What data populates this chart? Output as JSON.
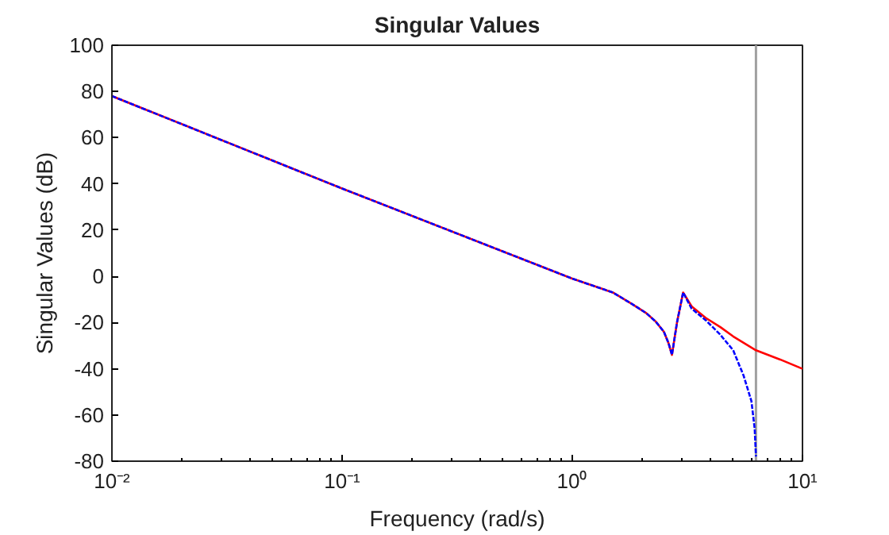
{
  "chart_data": {
    "type": "line",
    "title": "Singular Values",
    "xlabel": "Frequency (rad/s)",
    "ylabel": "Singular Values (dB)",
    "log": "x",
    "xlim": [
      0.01,
      10
    ],
    "ylim": [
      -80,
      100
    ],
    "xticks": [
      {
        "value": 0.01,
        "label": "10⁻²"
      },
      {
        "value": 0.1,
        "label": "10⁻¹"
      },
      {
        "value": 1,
        "label": "10⁰"
      },
      {
        "value": 10,
        "label": "10¹"
      }
    ],
    "yticks": [
      -80,
      -60,
      -40,
      -20,
      0,
      20,
      40,
      60,
      80,
      100
    ],
    "grid": false,
    "series": [
      {
        "color": "#ff0000",
        "line_style": "solid",
        "x": [
          0.01,
          0.1,
          1,
          1.5,
          1.82,
          2.1,
          2.3,
          2.5,
          2.62,
          2.71,
          2.85,
          3.03,
          3.3,
          3.8,
          4.4,
          5.0,
          6.28,
          8,
          10
        ],
        "values": [
          78,
          38,
          -1,
          -7,
          -12,
          -16,
          -19.5,
          -24,
          -29,
          -34,
          -20,
          -7,
          -13,
          -18,
          -22,
          -26,
          -32,
          -36,
          -40
        ]
      },
      {
        "color": "#0000ff",
        "line_style": "dashed",
        "x": [
          0.01,
          0.1,
          1,
          1.5,
          1.82,
          2.1,
          2.3,
          2.5,
          2.62,
          2.71,
          2.85,
          3.03,
          3.3,
          3.8,
          4.37,
          5.0,
          5.55,
          6.0,
          6.2,
          6.28
        ],
        "values": [
          78,
          38,
          -1,
          -7,
          -12,
          -16,
          -19.5,
          -24,
          -29,
          -34,
          -20,
          -7,
          -14,
          -19,
          -25,
          -32,
          -43,
          -54,
          -66,
          -78
        ]
      }
    ],
    "ref_lines": [
      {
        "axis": "x",
        "value": 6.28,
        "color": "#a0a0a0",
        "line_style": "solid"
      }
    ]
  }
}
